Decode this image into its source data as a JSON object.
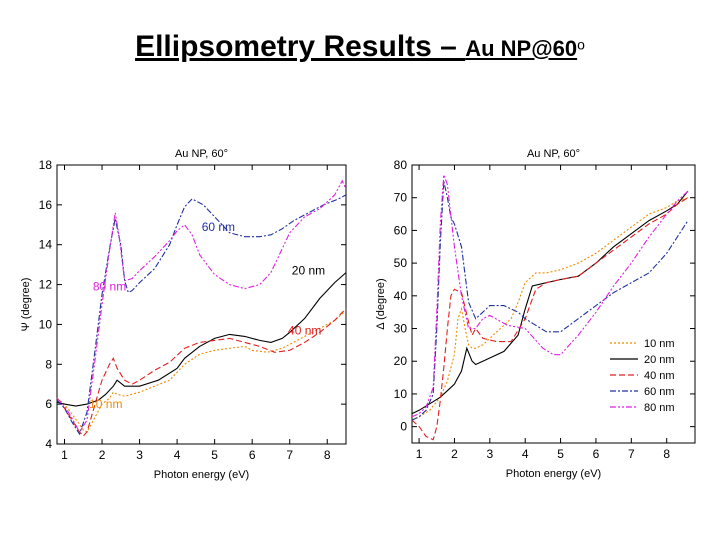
{
  "slide": {
    "title_main": "Ellipsometry Results – ",
    "title_sub": "Au NP@60",
    "title_sup": "o"
  },
  "colors": {
    "10 nm": "#f08a00",
    "20 nm": "#000000",
    "40 nm": "#e02020",
    "60 nm": "#2030a0",
    "80 nm": "#e020e0"
  },
  "chart_data": [
    {
      "type": "line",
      "title": "Au NP, 60°",
      "xlabel": "Photon energy (eV)",
      "ylabel": "Ψ (degree)",
      "xlim": [
        0.8,
        8.5
      ],
      "ylim": [
        4,
        18
      ],
      "xticks": [
        1,
        2,
        3,
        4,
        5,
        6,
        7,
        8
      ],
      "yticks": [
        4,
        6,
        8,
        10,
        12,
        14,
        16,
        18
      ],
      "grid": false,
      "annotations": [
        {
          "text": "60 nm",
          "x": 5.1,
          "y": 14.7,
          "color": "#2030a0"
        },
        {
          "text": "20 nm",
          "x": 7.5,
          "y": 12.5,
          "color": "#000000"
        },
        {
          "text": "80 nm",
          "x": 2.2,
          "y": 11.7,
          "color": "#e020e0"
        },
        {
          "text": "40 nm",
          "x": 7.4,
          "y": 9.5,
          "color": "#e02020"
        },
        {
          "text": "10 nm",
          "x": 2.1,
          "y": 5.8,
          "color": "#f08a00"
        }
      ],
      "series": [
        {
          "name": "10 nm",
          "dash": "2,2",
          "x": [
            0.8,
            1.0,
            1.2,
            1.4,
            1.5,
            1.6,
            1.8,
            2.0,
            2.2,
            2.3,
            2.4,
            2.6,
            2.8,
            3.0,
            3.4,
            3.8,
            4.2,
            4.6,
            5.0,
            5.4,
            5.8,
            6.0,
            6.4,
            6.8,
            7.0,
            7.4,
            7.8,
            8.2,
            8.5
          ],
          "y": [
            6.3,
            6.0,
            5.5,
            5.0,
            4.7,
            4.6,
            5.3,
            6.0,
            6.3,
            6.6,
            6.5,
            6.4,
            6.5,
            6.6,
            6.9,
            7.2,
            8.0,
            8.5,
            8.7,
            8.8,
            8.9,
            8.7,
            8.6,
            8.8,
            9.0,
            9.4,
            9.8,
            10.2,
            10.7
          ]
        },
        {
          "name": "20 nm",
          "dash": "",
          "x": [
            0.8,
            1.0,
            1.3,
            1.6,
            1.9,
            2.1,
            2.3,
            2.4,
            2.6,
            3.0,
            3.5,
            4.0,
            4.2,
            4.6,
            5.0,
            5.4,
            5.8,
            6.2,
            6.5,
            6.8,
            7.0,
            7.4,
            7.8,
            8.2,
            8.5
          ],
          "y": [
            6.1,
            6.0,
            5.9,
            6.0,
            6.2,
            6.5,
            6.9,
            7.2,
            6.9,
            6.9,
            7.2,
            7.8,
            8.3,
            8.9,
            9.3,
            9.5,
            9.4,
            9.2,
            9.1,
            9.3,
            9.6,
            10.3,
            11.3,
            12.1,
            12.6
          ]
        },
        {
          "name": "40 nm",
          "dash": "6,3",
          "x": [
            0.8,
            1.0,
            1.2,
            1.4,
            1.5,
            1.6,
            1.8,
            2.0,
            2.2,
            2.3,
            2.4,
            2.6,
            2.8,
            3.0,
            3.4,
            3.8,
            4.2,
            4.6,
            5.0,
            5.4,
            5.8,
            6.2,
            6.6,
            7.0,
            7.4,
            7.8,
            8.2,
            8.5
          ],
          "y": [
            6.2,
            5.8,
            5.2,
            4.6,
            4.4,
            4.6,
            5.9,
            7.2,
            8.0,
            8.3,
            7.8,
            7.2,
            7.0,
            7.2,
            7.7,
            8.1,
            8.8,
            9.1,
            9.2,
            9.3,
            9.1,
            8.9,
            8.6,
            8.7,
            9.1,
            9.6,
            10.2,
            10.8
          ]
        },
        {
          "name": "60 nm",
          "dash": "6,2,2,2",
          "x": [
            0.8,
            1.0,
            1.2,
            1.4,
            1.6,
            1.8,
            2.0,
            2.2,
            2.35,
            2.5,
            2.6,
            2.7,
            2.8,
            3.0,
            3.4,
            3.8,
            4.0,
            4.2,
            4.4,
            4.7,
            5.0,
            5.4,
            5.8,
            6.2,
            6.5,
            6.8,
            7.1,
            7.5,
            7.9,
            8.3,
            8.5
          ],
          "y": [
            6.2,
            5.8,
            5.1,
            4.5,
            5.6,
            8.5,
            11.5,
            13.8,
            15.3,
            14.0,
            12.2,
            11.6,
            11.7,
            12.1,
            12.8,
            14.0,
            15.0,
            15.9,
            16.3,
            16.0,
            15.4,
            14.6,
            14.4,
            14.4,
            14.5,
            14.8,
            15.2,
            15.6,
            16.0,
            16.3,
            16.5
          ]
        },
        {
          "name": "80 nm",
          "dash": "6,2,2,2,2,2",
          "x": [
            0.8,
            1.0,
            1.2,
            1.4,
            1.6,
            1.8,
            2.0,
            2.2,
            2.35,
            2.45,
            2.6,
            2.8,
            3.0,
            3.4,
            3.8,
            4.0,
            4.2,
            4.4,
            4.6,
            5.0,
            5.4,
            5.8,
            6.2,
            6.5,
            6.8,
            7.0,
            7.4,
            7.8,
            8.2,
            8.4,
            8.5
          ],
          "y": [
            6.3,
            5.9,
            5.3,
            4.6,
            5.2,
            8.0,
            11.0,
            13.7,
            15.6,
            14.5,
            12.2,
            12.3,
            12.7,
            13.4,
            14.2,
            14.7,
            15.0,
            14.5,
            13.5,
            12.5,
            12.0,
            11.8,
            12.0,
            12.6,
            13.8,
            14.6,
            15.4,
            15.8,
            16.5,
            17.2,
            16.8
          ]
        }
      ]
    },
    {
      "type": "line",
      "title": "Au NP, 60°",
      "xlabel": "Photon energy (eV)",
      "ylabel": "Δ (degree)",
      "xlim": [
        0.8,
        8.8
      ],
      "ylim": [
        -5,
        80
      ],
      "xticks": [
        1,
        2,
        3,
        4,
        5,
        6,
        7,
        8
      ],
      "yticks": [
        0,
        10,
        20,
        30,
        40,
        50,
        60,
        70,
        80
      ],
      "grid": false,
      "legend": "bottom-right",
      "series": [
        {
          "name": "10 nm",
          "dash": "2,2",
          "x": [
            0.8,
            1.0,
            1.3,
            1.6,
            1.8,
            2.0,
            2.1,
            2.2,
            2.3,
            2.4,
            2.5,
            2.6,
            2.8,
            3.0,
            3.3,
            3.6,
            3.8,
            4.0,
            4.3,
            4.6,
            5.0,
            5.5,
            6.0,
            6.5,
            7.0,
            7.5,
            8.0,
            8.3,
            8.6
          ],
          "y": [
            2,
            3,
            5,
            9,
            14,
            22,
            33,
            36,
            30,
            25,
            24,
            24,
            25,
            27,
            30,
            33,
            38,
            44,
            47,
            47,
            48,
            50,
            53,
            57,
            61,
            65,
            67,
            69,
            70
          ]
        },
        {
          "name": "20 nm",
          "dash": "",
          "x": [
            0.8,
            1.0,
            1.3,
            1.6,
            1.8,
            2.0,
            2.2,
            2.35,
            2.5,
            2.6,
            2.8,
            3.0,
            3.4,
            3.8,
            4.0,
            4.2,
            4.6,
            5.0,
            5.5,
            6.0,
            6.5,
            7.0,
            7.5,
            8.0,
            8.3,
            8.6
          ],
          "y": [
            4,
            5,
            7,
            9,
            11,
            13,
            17,
            24,
            20,
            19,
            20,
            21,
            23,
            28,
            36,
            43,
            44,
            45,
            46,
            50,
            55,
            59,
            63,
            66,
            68,
            72
          ]
        },
        {
          "name": "40 nm",
          "dash": "6,3",
          "x": [
            0.8,
            1.0,
            1.2,
            1.4,
            1.5,
            1.6,
            1.7,
            1.8,
            1.9,
            2.0,
            2.2,
            2.4,
            2.5,
            2.6,
            2.8,
            3.2,
            3.6,
            4.0,
            4.3,
            4.6,
            5.0,
            5.5,
            6.0,
            6.5,
            7.0,
            7.5,
            8.0,
            8.3,
            8.6
          ],
          "y": [
            2,
            0,
            -3,
            -4,
            0,
            8,
            18,
            30,
            40,
            42,
            41,
            32,
            28,
            30,
            27,
            26,
            26,
            33,
            42,
            44,
            45,
            46,
            50,
            54,
            58,
            62,
            65,
            68,
            70
          ]
        },
        {
          "name": "60 nm",
          "dash": "6,2,2,2",
          "x": [
            0.8,
            1.0,
            1.2,
            1.4,
            1.5,
            1.6,
            1.7,
            1.8,
            1.9,
            2.0,
            2.2,
            2.4,
            2.6,
            2.8,
            3.0,
            3.4,
            3.8,
            4.0,
            4.3,
            4.6,
            5.0,
            5.5,
            6.0,
            6.5,
            7.0,
            7.5,
            8.0,
            8.3,
            8.6
          ],
          "y": [
            2,
            3,
            5,
            10,
            30,
            56,
            75,
            70,
            64,
            62,
            55,
            38,
            33,
            35,
            37,
            37,
            35,
            33,
            31,
            29,
            29,
            33,
            37,
            41,
            44,
            47,
            53,
            58,
            63
          ]
        },
        {
          "name": "80 nm",
          "dash": "6,2,2,2,2,2",
          "x": [
            0.8,
            1.0,
            1.2,
            1.4,
            1.5,
            1.6,
            1.7,
            1.8,
            2.0,
            2.2,
            2.4,
            2.6,
            2.8,
            3.0,
            3.5,
            4.0,
            4.5,
            4.8,
            5.0,
            5.5,
            6.0,
            6.5,
            7.0,
            7.5,
            8.0,
            8.3,
            8.6
          ],
          "y": [
            3,
            4,
            6,
            12,
            35,
            62,
            77,
            74,
            55,
            40,
            30,
            30,
            33,
            34,
            31,
            30,
            24,
            22,
            22,
            28,
            35,
            43,
            50,
            58,
            65,
            69,
            72
          ]
        }
      ]
    }
  ]
}
